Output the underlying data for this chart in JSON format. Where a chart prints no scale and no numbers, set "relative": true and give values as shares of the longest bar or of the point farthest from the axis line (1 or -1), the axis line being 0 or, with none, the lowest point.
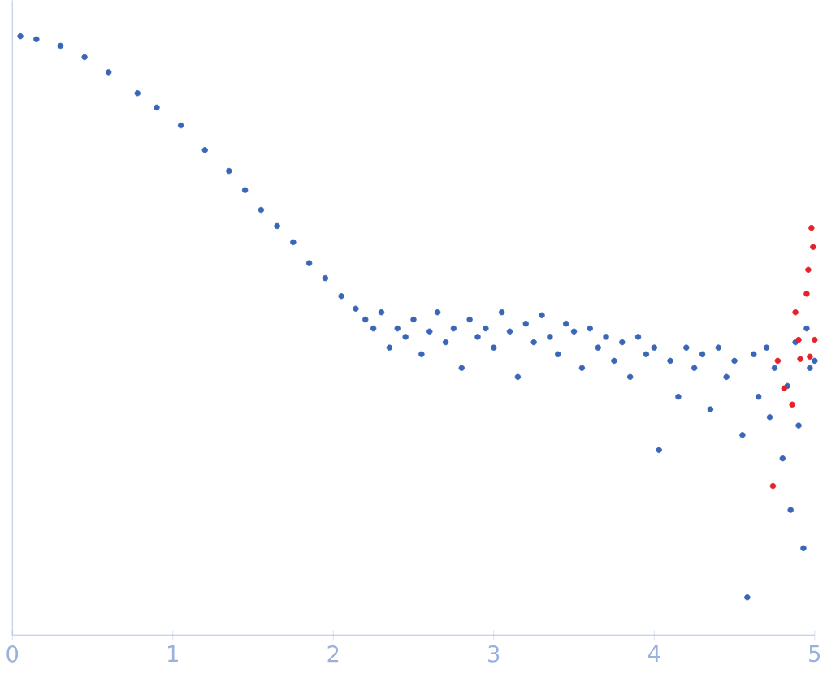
{
  "chart_data": {
    "type": "scatter",
    "relative": true,
    "tick_labels": "x",
    "xlim": [
      0,
      5
    ],
    "xticks": [
      0,
      1,
      2,
      3,
      4,
      5
    ],
    "series": [
      {
        "color": "#3a66b8",
        "x": [
          0.05,
          0.15,
          0.3,
          0.45,
          0.6,
          0.78,
          0.9,
          1.05,
          1.2,
          1.35,
          1.45,
          1.55,
          1.65,
          1.75,
          1.85,
          1.95,
          2.05,
          2.14,
          2.2,
          2.25,
          2.3,
          2.35,
          2.4,
          2.45,
          2.5,
          2.55,
          2.6,
          2.65,
          2.7,
          2.75,
          2.8,
          2.85,
          2.9,
          2.95,
          3.0,
          3.05,
          3.1,
          3.15,
          3.2,
          3.25,
          3.3,
          3.35,
          3.4,
          3.45,
          3.5,
          3.55,
          3.6,
          3.65,
          3.7,
          3.75,
          3.8,
          3.85,
          3.9,
          3.95,
          4.0,
          4.03,
          4.1,
          4.15,
          4.2,
          4.25,
          4.3,
          4.35,
          4.4,
          4.45,
          4.5,
          4.55,
          4.58,
          4.62,
          4.65,
          4.7,
          4.72,
          4.75,
          4.8,
          4.83,
          4.85,
          4.88,
          4.9,
          4.93,
          4.95,
          4.97,
          5.0
        ],
        "values": [
          1,
          0.995,
          0.984,
          0.965,
          0.94,
          0.905,
          0.881,
          0.851,
          0.81,
          0.775,
          0.743,
          0.71,
          0.683,
          0.656,
          0.621,
          0.596,
          0.566,
          0.545,
          0.527,
          0.512,
          0.539,
          0.48,
          0.512,
          0.498,
          0.527,
          0.469,
          0.507,
          0.539,
          0.489,
          0.512,
          0.446,
          0.527,
          0.498,
          0.512,
          0.48,
          0.539,
          0.507,
          0.431,
          0.52,
          0.489,
          0.534,
          0.498,
          0.469,
          0.52,
          0.507,
          0.446,
          0.512,
          0.48,
          0.498,
          0.458,
          0.489,
          0.431,
          0.498,
          0.469,
          0.48,
          0.309,
          0.458,
          0.398,
          0.48,
          0.446,
          0.469,
          0.377,
          0.48,
          0.431,
          0.458,
          0.334,
          0.063,
          0.469,
          0.398,
          0.48,
          0.364,
          0.446,
          0.295,
          0.416,
          0.209,
          0.489,
          0.35,
          0.145,
          0.512,
          0.446,
          0.458
        ],
        "name": null
      },
      {
        "color": "#e8202a",
        "x": [
          4.74,
          4.77,
          4.81,
          4.86,
          4.88,
          4.9,
          4.91,
          4.95,
          4.96,
          4.97,
          4.98,
          4.99,
          5.0
        ],
        "values": [
          0.249,
          0.458,
          0.412,
          0.385,
          0.539,
          0.493,
          0.461,
          0.57,
          0.61,
          0.465,
          0.68,
          0.648,
          0.493
        ]
      }
    ]
  }
}
